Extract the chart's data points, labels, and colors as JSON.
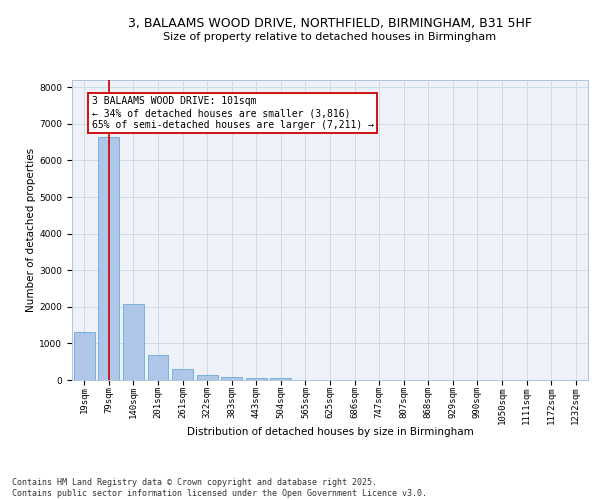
{
  "title_line1": "3, BALAAMS WOOD DRIVE, NORTHFIELD, BIRMINGHAM, B31 5HF",
  "title_line2": "Size of property relative to detached houses in Birmingham",
  "xlabel": "Distribution of detached houses by size in Birmingham",
  "ylabel": "Number of detached properties",
  "categories": [
    "19sqm",
    "79sqm",
    "140sqm",
    "201sqm",
    "261sqm",
    "322sqm",
    "383sqm",
    "443sqm",
    "504sqm",
    "565sqm",
    "625sqm",
    "686sqm",
    "747sqm",
    "807sqm",
    "868sqm",
    "929sqm",
    "990sqm",
    "1050sqm",
    "1111sqm",
    "1172sqm",
    "1232sqm"
  ],
  "values": [
    1320,
    6630,
    2090,
    670,
    290,
    145,
    80,
    45,
    45,
    0,
    0,
    0,
    0,
    0,
    0,
    0,
    0,
    0,
    0,
    0,
    0
  ],
  "bar_color": "#aec6e8",
  "bar_edge_color": "#5a9fd4",
  "vline_x": 1,
  "vline_color": "#cc0000",
  "annotation_text": "3 BALAAMS WOOD DRIVE: 101sqm\n← 34% of detached houses are smaller (3,816)\n65% of semi-detached houses are larger (7,211) →",
  "annotation_box_color": "#ffffff",
  "annotation_box_edge": "#cc0000",
  "ylim": [
    0,
    8200
  ],
  "yticks": [
    0,
    1000,
    2000,
    3000,
    4000,
    5000,
    6000,
    7000,
    8000
  ],
  "bg_color": "#eef2f8",
  "footer_text": "Contains HM Land Registry data © Crown copyright and database right 2025.\nContains public sector information licensed under the Open Government Licence v3.0.",
  "title_fontsize": 9,
  "subtitle_fontsize": 8,
  "axis_label_fontsize": 7.5,
  "tick_fontsize": 6.5,
  "annotation_fontsize": 7
}
